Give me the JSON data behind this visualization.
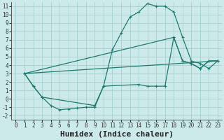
{
  "xlabel": "Humidex (Indice chaleur)",
  "background_color": "#cceaea",
  "grid_color": "#a8d0d0",
  "line_color": "#1e7b70",
  "xlim": [
    -0.5,
    23.5
  ],
  "ylim": [
    -2.5,
    11.5
  ],
  "xticks": [
    0,
    1,
    2,
    3,
    4,
    5,
    6,
    7,
    8,
    9,
    10,
    11,
    12,
    13,
    14,
    15,
    16,
    17,
    18,
    19,
    20,
    21,
    22,
    23
  ],
  "yticks": [
    -2,
    -1,
    0,
    1,
    2,
    3,
    4,
    5,
    6,
    7,
    8,
    9,
    10,
    11
  ],
  "curve1_x": [
    1,
    2,
    3,
    4,
    5,
    6,
    7,
    8,
    9,
    10,
    11,
    12,
    13,
    14,
    15,
    16,
    17,
    18,
    19,
    20,
    21,
    22,
    23
  ],
  "curve1_y": [
    3,
    1.5,
    0.2,
    -0.8,
    -1.3,
    -1.2,
    -1.1,
    -1.0,
    -1.0,
    1.5,
    5.8,
    7.8,
    9.7,
    10.3,
    11.3,
    11.0,
    11.0,
    10.3,
    7.3,
    4.5,
    4.2,
    3.6,
    4.5
  ],
  "curve2_x": [
    1,
    2,
    3,
    9,
    10,
    14,
    15,
    16,
    17,
    18,
    19,
    20,
    21,
    22,
    23
  ],
  "curve2_y": [
    3,
    1.5,
    0.2,
    -0.8,
    1.5,
    1.7,
    1.5,
    1.5,
    1.5,
    7.3,
    4.5,
    4.2,
    3.6,
    4.5,
    4.5
  ],
  "curve3_x": [
    1,
    23
  ],
  "curve3_y": [
    3,
    4.5
  ],
  "curve4_x": [
    1,
    18,
    19,
    20,
    21,
    22,
    23
  ],
  "curve4_y": [
    3,
    7.3,
    4.5,
    4.2,
    3.6,
    4.5,
    4.5
  ],
  "xlabel_fontsize": 8,
  "tick_fontsize": 5.5
}
